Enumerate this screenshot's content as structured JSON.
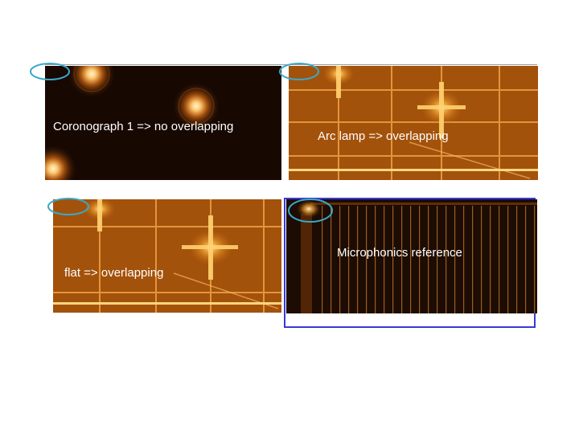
{
  "panels": [
    {
      "label": "Coronograph 1 => no overlapping"
    },
    {
      "label": "Arc lamp => overlapping"
    },
    {
      "label": "flat => overlapping"
    },
    {
      "label": "Microphonics reference"
    }
  ],
  "colors": {
    "dark_background": "#1a0a02",
    "orange": "#c86a10",
    "bright_orange": "#ffc060",
    "highlight_ellipse": "#3aa8c8",
    "reference_frame": "#3a3ad6"
  }
}
